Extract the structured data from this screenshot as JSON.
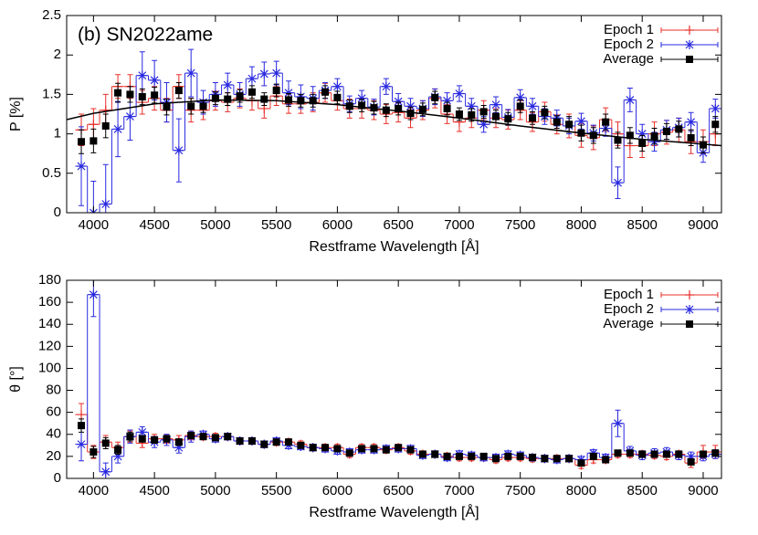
{
  "chart_data": [
    {
      "type": "line",
      "annotation": "(b) SN2022ame",
      "ylabel": "P [%]",
      "xlabel": "Restframe Wavelength [Å]",
      "xlim": [
        3780,
        9150
      ],
      "xticks": [
        4000,
        4500,
        5000,
        5500,
        6000,
        6500,
        7000,
        7500,
        8000,
        8500,
        9000
      ],
      "ylim": [
        0,
        2.5
      ],
      "yticks": [
        0,
        0.5,
        1,
        1.5,
        2,
        2.5
      ],
      "legend": "upper right",
      "grid": false,
      "x": [
        3900,
        4000,
        4100,
        4200,
        4300,
        4400,
        4500,
        4600,
        4700,
        4800,
        4900,
        5000,
        5100,
        5200,
        5300,
        5400,
        5500,
        5600,
        5700,
        5800,
        5900,
        6000,
        6100,
        6200,
        6300,
        6400,
        6500,
        6600,
        6700,
        6800,
        6900,
        7000,
        7100,
        7200,
        7300,
        7400,
        7500,
        7600,
        7700,
        7800,
        7900,
        8000,
        8100,
        8200,
        8300,
        8400,
        8500,
        8600,
        8700,
        8800,
        8900,
        9000,
        9100
      ],
      "series": [
        {
          "name": "Epoch 1",
          "color": "#e8302a",
          "marker": "plus",
          "step": true,
          "values": [
            1.05,
            1.12,
            1.3,
            1.6,
            1.6,
            1.4,
            1.45,
            1.3,
            1.6,
            1.3,
            1.3,
            1.42,
            1.4,
            1.45,
            1.42,
            1.32,
            1.48,
            1.38,
            1.38,
            1.4,
            1.52,
            1.42,
            1.32,
            1.32,
            1.3,
            1.25,
            1.27,
            1.2,
            1.3,
            1.45,
            1.25,
            1.15,
            1.2,
            1.3,
            1.2,
            1.18,
            1.3,
            1.15,
            1.28,
            1.12,
            1.1,
            0.98,
            0.95,
            1.18,
            1.0,
            0.85,
            0.85,
            1.0,
            1.02,
            1.05,
            0.9,
            0.9,
            1.0
          ],
          "errors": [
            0.2,
            0.2,
            0.2,
            0.15,
            0.15,
            0.15,
            0.15,
            0.15,
            0.15,
            0.15,
            0.12,
            0.12,
            0.12,
            0.12,
            0.12,
            0.12,
            0.12,
            0.12,
            0.12,
            0.12,
            0.12,
            0.12,
            0.12,
            0.12,
            0.12,
            0.12,
            0.12,
            0.12,
            0.12,
            0.12,
            0.12,
            0.12,
            0.12,
            0.12,
            0.12,
            0.12,
            0.12,
            0.12,
            0.12,
            0.12,
            0.15,
            0.15,
            0.15,
            0.15,
            0.15,
            0.15,
            0.15,
            0.15,
            0.15,
            0.15,
            0.15,
            0.15,
            0.15
          ]
        },
        {
          "name": "Epoch 2",
          "color": "#2a2ae0",
          "marker": "star",
          "step": true,
          "values": [
            0.59,
            0,
            0.11,
            1.06,
            1.22,
            1.74,
            1.68,
            1.4,
            0.79,
            1.77,
            1.4,
            1.5,
            1.62,
            1.5,
            1.7,
            1.76,
            1.77,
            1.52,
            1.47,
            1.45,
            1.55,
            1.6,
            1.38,
            1.45,
            1.34,
            1.6,
            1.41,
            1.35,
            1.32,
            1.47,
            1.42,
            1.51,
            1.35,
            1.12,
            1.37,
            1.21,
            1.46,
            1.35,
            1.22,
            1.2,
            1.1,
            1.16,
            1.01,
            1.07,
            0.38,
            1.43,
            1.0,
            0.9,
            1.05,
            1.08,
            1.15,
            0.76,
            1.32
          ],
          "errors": [
            0.5,
            0.4,
            0.5,
            0.35,
            0.3,
            0.3,
            0.25,
            0.25,
            0.4,
            0.3,
            0.15,
            0.15,
            0.15,
            0.15,
            0.15,
            0.15,
            0.15,
            0.15,
            0.15,
            0.15,
            0.1,
            0.1,
            0.1,
            0.1,
            0.1,
            0.1,
            0.1,
            0.1,
            0.1,
            0.1,
            0.1,
            0.1,
            0.1,
            0.1,
            0.1,
            0.1,
            0.1,
            0.1,
            0.1,
            0.1,
            0.1,
            0.1,
            0.1,
            0.1,
            0.2,
            0.15,
            0.12,
            0.12,
            0.12,
            0.12,
            0.12,
            0.12,
            0.12
          ]
        },
        {
          "name": "Average",
          "color": "#000000",
          "marker": "square",
          "step": false,
          "values": [
            0.9,
            0.91,
            1.1,
            1.52,
            1.5,
            1.47,
            1.49,
            1.34,
            1.55,
            1.35,
            1.35,
            1.45,
            1.44,
            1.48,
            1.53,
            1.44,
            1.55,
            1.43,
            1.42,
            1.42,
            1.53,
            1.46,
            1.35,
            1.36,
            1.33,
            1.3,
            1.32,
            1.26,
            1.31,
            1.46,
            1.32,
            1.25,
            1.24,
            1.28,
            1.22,
            1.19,
            1.35,
            1.2,
            1.27,
            1.15,
            1.12,
            1.01,
            0.98,
            1.15,
            0.92,
            0.98,
            0.88,
            0.97,
            1.03,
            1.06,
            0.95,
            0.86,
            1.12
          ],
          "errors": [
            0.15,
            0.15,
            0.15,
            0.12,
            0.1,
            0.1,
            0.1,
            0.1,
            0.1,
            0.1,
            0.08,
            0.08,
            0.08,
            0.08,
            0.08,
            0.08,
            0.08,
            0.08,
            0.08,
            0.08,
            0.08,
            0.08,
            0.08,
            0.08,
            0.08,
            0.08,
            0.08,
            0.08,
            0.08,
            0.08,
            0.08,
            0.08,
            0.08,
            0.08,
            0.08,
            0.08,
            0.08,
            0.08,
            0.08,
            0.08,
            0.1,
            0.1,
            0.1,
            0.1,
            0.1,
            0.1,
            0.1,
            0.1,
            0.1,
            0.1,
            0.1,
            0.1,
            0.1
          ]
        }
      ],
      "fit": {
        "color": "#000000",
        "x": [
          3780,
          4000,
          4500,
          5000,
          5500,
          6000,
          6500,
          7000,
          7500,
          8000,
          8500,
          9000,
          9150
        ],
        "values": [
          1.18,
          1.26,
          1.38,
          1.43,
          1.42,
          1.37,
          1.29,
          1.2,
          1.1,
          1.01,
          0.93,
          0.87,
          0.85
        ]
      }
    },
    {
      "type": "line",
      "ylabel": "θ [°]",
      "xlabel": "Restframe Wavelength [Å]",
      "xlim": [
        3780,
        9150
      ],
      "xticks": [
        4000,
        4500,
        5000,
        5500,
        6000,
        6500,
        7000,
        7500,
        8000,
        8500,
        9000
      ],
      "ylim": [
        0,
        180
      ],
      "yticks": [
        0,
        20,
        40,
        60,
        80,
        100,
        120,
        140,
        160,
        180
      ],
      "legend": "upper right",
      "grid": false,
      "x": [
        3900,
        4000,
        4100,
        4200,
        4300,
        4400,
        4500,
        4600,
        4700,
        4800,
        4900,
        5000,
        5100,
        5200,
        5300,
        5400,
        5500,
        5600,
        5700,
        5800,
        5900,
        6000,
        6100,
        6200,
        6300,
        6400,
        6500,
        6600,
        6700,
        6800,
        6900,
        7000,
        7100,
        7200,
        7300,
        7400,
        7500,
        7600,
        7700,
        7800,
        7900,
        8000,
        8100,
        8200,
        8300,
        8400,
        8500,
        8600,
        8700,
        8800,
        8900,
        9000,
        9100
      ],
      "series": [
        {
          "name": "Epoch 1",
          "color": "#e8302a",
          "marker": "plus",
          "step": true,
          "values": [
            58,
            24,
            33,
            28,
            38,
            32,
            36,
            36,
            35,
            39,
            38,
            38,
            38,
            34,
            34,
            31,
            33,
            33,
            31,
            28,
            28,
            28,
            22,
            28,
            28,
            26,
            28,
            25,
            22,
            22,
            20,
            19,
            19,
            19,
            17,
            19,
            19,
            18,
            18,
            18,
            18,
            12,
            17,
            17,
            22,
            22,
            22,
            21,
            20,
            22,
            14,
            24,
            24
          ],
          "errors": [
            10,
            6,
            6,
            5,
            5,
            4,
            4,
            4,
            4,
            4,
            3,
            3,
            3,
            3,
            3,
            3,
            3,
            3,
            3,
            3,
            3,
            3,
            3,
            3,
            3,
            3,
            3,
            3,
            3,
            3,
            3,
            3,
            3,
            3,
            3,
            3,
            3,
            3,
            3,
            3,
            3,
            3,
            3,
            3,
            3,
            3,
            3,
            3,
            3,
            3,
            4,
            6,
            6
          ]
        },
        {
          "name": "Epoch 2",
          "color": "#2a2ae0",
          "marker": "star",
          "step": true,
          "values": [
            31,
            167,
            6,
            20,
            38,
            42,
            33,
            35,
            28,
            38,
            40,
            36,
            38,
            34,
            34,
            31,
            34,
            30,
            29,
            28,
            27,
            25,
            24,
            26,
            26,
            27,
            27,
            27,
            21,
            22,
            19,
            22,
            21,
            19,
            19,
            22,
            21,
            19,
            18,
            17,
            18,
            17,
            23,
            19,
            50,
            25,
            21,
            23,
            24,
            21,
            20,
            20,
            22
          ],
          "errors": [
            15,
            20,
            8,
            6,
            6,
            5,
            5,
            5,
            5,
            5,
            3,
            3,
            3,
            3,
            3,
            3,
            3,
            3,
            3,
            3,
            3,
            3,
            3,
            3,
            3,
            3,
            3,
            3,
            3,
            3,
            3,
            3,
            3,
            3,
            3,
            3,
            3,
            3,
            3,
            3,
            3,
            3,
            3,
            3,
            12,
            4,
            4,
            4,
            4,
            4,
            4,
            4,
            4
          ]
        },
        {
          "name": "Average",
          "color": "#000000",
          "marker": "square",
          "step": false,
          "values": [
            48,
            24,
            32,
            26,
            38,
            36,
            35,
            36,
            33,
            39,
            38,
            37,
            38,
            34,
            34,
            31,
            33,
            33,
            30,
            28,
            28,
            27,
            23,
            27,
            27,
            26,
            28,
            26,
            22,
            22,
            20,
            20,
            20,
            20,
            18,
            20,
            20,
            19,
            18,
            18,
            18,
            14,
            20,
            17,
            23,
            23,
            22,
            22,
            22,
            22,
            15,
            22,
            23
          ],
          "errors": [
            6,
            5,
            5,
            4,
            4,
            3,
            3,
            3,
            3,
            3,
            2,
            2,
            2,
            2,
            2,
            2,
            2,
            2,
            2,
            2,
            2,
            2,
            2,
            2,
            2,
            2,
            2,
            2,
            2,
            2,
            2,
            2,
            2,
            2,
            2,
            2,
            2,
            2,
            2,
            2,
            2,
            2,
            2,
            2,
            2,
            2,
            2,
            2,
            2,
            2,
            2,
            2,
            2
          ]
        }
      ]
    }
  ]
}
